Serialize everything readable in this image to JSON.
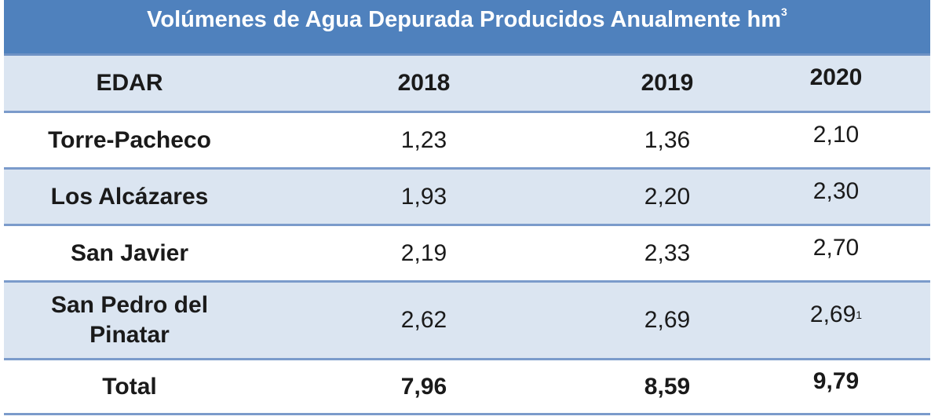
{
  "title": {
    "text": "Volúmenes de Agua Depurada Producidos Anualmente hm",
    "sup": "3"
  },
  "header": [
    "EDAR",
    "2018",
    "2019",
    "2020"
  ],
  "rows": [
    {
      "name": "Torre-Pacheco",
      "v2018": "1,23",
      "v2019": "1,36",
      "v2020": "2,10",
      "note": ""
    },
    {
      "name": "Los Alcázares",
      "v2018": "1,93",
      "v2019": "2,20",
      "v2020": "2,30",
      "note": ""
    },
    {
      "name": "San Javier",
      "v2018": "2,19",
      "v2019": "2,33",
      "v2020": "2,70",
      "note": ""
    },
    {
      "name": "San Pedro del Pinatar",
      "v2018": "2,62",
      "v2019": "2,69",
      "v2020": "2,69",
      "note": "1"
    }
  ],
  "total": {
    "name": "Total",
    "v2018": "7,96",
    "v2019": "8,59",
    "v2020": "9,79"
  },
  "colors": {
    "title_bg": "#4f81bd",
    "alt_row_bg": "#dbe5f1",
    "border": "#7b9bcb"
  }
}
